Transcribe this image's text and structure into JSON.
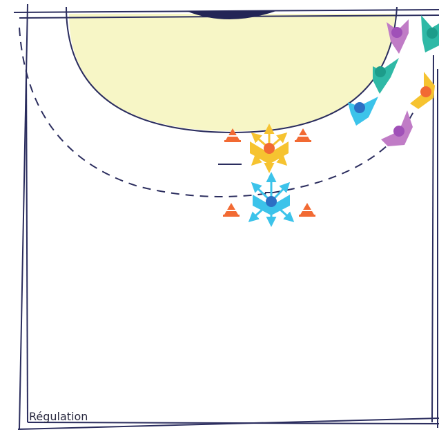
{
  "caption": "Régulation",
  "colors": {
    "line": "#2b2d5e",
    "zone_fill": "#f7f6c6",
    "defender_blue": "#3cc3ea",
    "defender_yellow": "#f6c330",
    "player_blue_dot": "#2c6fc4",
    "player_orange_dot": "#f26a33",
    "teal": "#2fb9a6",
    "purple": "#c07cc6",
    "cone": "#f26a33"
  },
  "icons": {
    "cone": "cone-icon",
    "defender": "defender-icon",
    "attacker": "attacker-icon",
    "arrow": "arrow-icon"
  }
}
